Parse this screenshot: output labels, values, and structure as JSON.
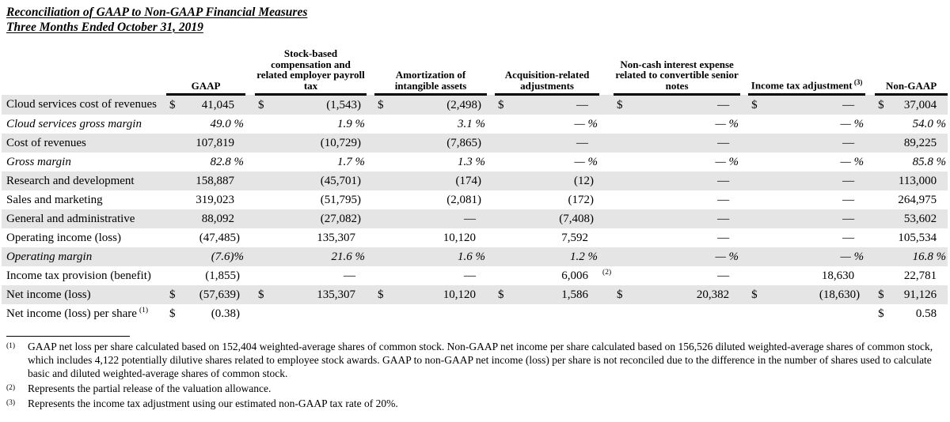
{
  "page_title": {
    "line1": "Reconciliation of GAAP to Non-GAAP Financial Measures",
    "line2": "Three Months Ended October 31, 2019"
  },
  "table": {
    "column_headers": [
      {
        "label": "GAAP",
        "sup": ""
      },
      {
        "label": "Stock-based compensation and related employer payroll tax",
        "sup": ""
      },
      {
        "label": "Amortization of intangible assets",
        "sup": ""
      },
      {
        "label": "Acquisition-related adjustments",
        "sup": ""
      },
      {
        "label": "Non-cash interest expense related to convertible senior notes",
        "sup": ""
      },
      {
        "label": "Income tax adjustment",
        "sup": "(3)"
      },
      {
        "label": "Non-GAAP",
        "sup": ""
      }
    ],
    "rows": [
      {
        "label": "Cloud services cost of revenues",
        "italic": false,
        "shaded": true,
        "cells": [
          {
            "d": "$",
            "v": "41,045"
          },
          {
            "d": "$",
            "v": "(1,543)"
          },
          {
            "d": "$",
            "v": "(2,498)"
          },
          {
            "d": "$",
            "v": "—"
          },
          {
            "d": "$",
            "v": "—"
          },
          {
            "d": "$",
            "v": "—"
          },
          {
            "d": "$",
            "v": "37,004"
          }
        ]
      },
      {
        "label": "Cloud services gross margin",
        "italic": true,
        "shaded": false,
        "cells": [
          {
            "v": "49.0 %"
          },
          {
            "v": "1.9 %"
          },
          {
            "v": "3.1 %"
          },
          {
            "v": "— %"
          },
          {
            "v": "— %"
          },
          {
            "v": "— %"
          },
          {
            "v": "54.0 %"
          }
        ]
      },
      {
        "label": "Cost of revenues",
        "italic": false,
        "shaded": true,
        "cells": [
          {
            "v": "107,819"
          },
          {
            "v": "(10,729)"
          },
          {
            "v": "(7,865)"
          },
          {
            "v": "—"
          },
          {
            "v": "—"
          },
          {
            "v": "—"
          },
          {
            "v": "89,225"
          }
        ]
      },
      {
        "label": "Gross margin",
        "italic": true,
        "shaded": false,
        "cells": [
          {
            "v": "82.8 %"
          },
          {
            "v": "1.7 %"
          },
          {
            "v": "1.3 %"
          },
          {
            "v": "— %"
          },
          {
            "v": "— %"
          },
          {
            "v": "— %"
          },
          {
            "v": "85.8 %"
          }
        ]
      },
      {
        "label": "Research and development",
        "italic": false,
        "shaded": true,
        "cells": [
          {
            "v": "158,887"
          },
          {
            "v": "(45,701)"
          },
          {
            "v": "(174)"
          },
          {
            "v": "(12)"
          },
          {
            "v": "—"
          },
          {
            "v": "—"
          },
          {
            "v": "113,000"
          }
        ]
      },
      {
        "label": "Sales and marketing",
        "italic": false,
        "shaded": false,
        "cells": [
          {
            "v": "319,023"
          },
          {
            "v": "(51,795)"
          },
          {
            "v": "(2,081)"
          },
          {
            "v": "(172)"
          },
          {
            "v": "—"
          },
          {
            "v": "—"
          },
          {
            "v": "264,975"
          }
        ]
      },
      {
        "label": "General and administrative",
        "italic": false,
        "shaded": true,
        "cells": [
          {
            "v": "88,092"
          },
          {
            "v": "(27,082)"
          },
          {
            "v": "—"
          },
          {
            "v": "(7,408)"
          },
          {
            "v": "—"
          },
          {
            "v": "—"
          },
          {
            "v": "53,602"
          }
        ]
      },
      {
        "label": "Operating income (loss)",
        "italic": false,
        "shaded": false,
        "cells": [
          {
            "v": "(47,485)"
          },
          {
            "v": "135,307"
          },
          {
            "v": "10,120"
          },
          {
            "v": "7,592"
          },
          {
            "v": "—"
          },
          {
            "v": "—"
          },
          {
            "v": "105,534"
          }
        ]
      },
      {
        "label": "Operating margin",
        "italic": true,
        "shaded": true,
        "cells": [
          {
            "v": "(7.6)%"
          },
          {
            "v": "21.6 %"
          },
          {
            "v": "1.6 %"
          },
          {
            "v": "1.2 %"
          },
          {
            "v": "— %"
          },
          {
            "v": "— %"
          },
          {
            "v": "16.8 %"
          }
        ]
      },
      {
        "label": "Income tax provision (benefit)",
        "italic": false,
        "shaded": false,
        "cells": [
          {
            "v": "(1,855)"
          },
          {
            "v": "—"
          },
          {
            "v": "—"
          },
          {
            "v": "6,006",
            "s": "(2)"
          },
          {
            "v": "—"
          },
          {
            "v": "18,630"
          },
          {
            "v": "22,781"
          }
        ]
      },
      {
        "label": "Net income (loss)",
        "italic": false,
        "shaded": true,
        "cells": [
          {
            "d": "$",
            "v": "(57,639)"
          },
          {
            "d": "$",
            "v": "135,307"
          },
          {
            "d": "$",
            "v": "10,120"
          },
          {
            "d": "$",
            "v": "1,586"
          },
          {
            "d": "$",
            "v": "20,382"
          },
          {
            "d": "$",
            "v": "(18,630)"
          },
          {
            "d": "$",
            "v": "91,126"
          }
        ]
      },
      {
        "label": "Net income (loss) per share",
        "label_sup": "(1)",
        "italic": false,
        "shaded": false,
        "cells": [
          {
            "d": "$",
            "v": "(0.38)"
          },
          {},
          {},
          {},
          {},
          {},
          {
            "d": "$",
            "v": "0.58"
          }
        ]
      }
    ]
  },
  "footnotes": [
    {
      "marker": "(1)",
      "text": "GAAP net loss per share calculated based on 152,404 weighted-average shares of common stock. Non-GAAP net income per share calculated based on 156,526 diluted weighted-average shares of common stock, which includes 4,122 potentially dilutive shares related to employee stock awards. GAAP to non-GAAP net income (loss) per share is not reconciled due to the difference in the number of shares used to calculate basic and diluted weighted-average shares of common stock."
    },
    {
      "marker": "(2)",
      "text": "Represents the partial release of the valuation allowance."
    },
    {
      "marker": "(3)",
      "text": "Represents the income tax adjustment using our estimated non-GAAP tax rate of 20%."
    }
  ],
  "colors": {
    "row_shade": "#e5e5e5",
    "text": "#000000",
    "background": "#ffffff"
  }
}
